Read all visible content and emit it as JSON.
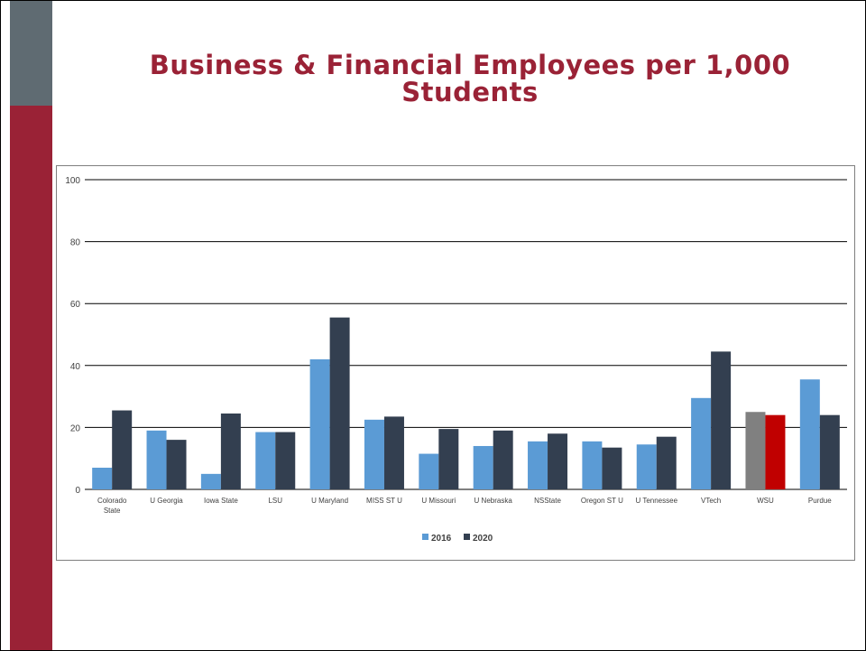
{
  "slide": {
    "title_line1": "Business & Financial Employees per 1,000",
    "title_line2": "Students"
  },
  "colors": {
    "sidebar_top": "#5f6b72",
    "sidebar_bottom": "#9a2236",
    "title": "#9a2236",
    "series_2016": "#5b9bd5",
    "series_2020": "#333f50",
    "wsu_2016": "#808080",
    "wsu_2020": "#c00000"
  },
  "chart_data": {
    "type": "bar",
    "title": "",
    "xlabel": "",
    "ylabel": "",
    "ylim": [
      0,
      100
    ],
    "yticks": [
      0,
      20,
      40,
      60,
      80,
      100
    ],
    "grid": true,
    "legend_position": "bottom",
    "categories": [
      [
        "Colorado",
        "State"
      ],
      [
        "U Georgia"
      ],
      [
        "Iowa State"
      ],
      [
        "LSU"
      ],
      [
        "U Maryland"
      ],
      [
        "MISS ST U"
      ],
      [
        "U Missouri"
      ],
      [
        "U Nebraska"
      ],
      [
        "NSState"
      ],
      [
        "Oregon ST U"
      ],
      [
        "U Tennessee"
      ],
      [
        "VTech"
      ],
      [
        "WSU"
      ],
      [
        "Purdue"
      ]
    ],
    "series": [
      {
        "name": "2016",
        "values": [
          7,
          19,
          5,
          18.5,
          42,
          22.5,
          11.5,
          14,
          15.5,
          15.5,
          14.5,
          29.5,
          25,
          35.5
        ]
      },
      {
        "name": "2020",
        "values": [
          25.5,
          16,
          24.5,
          18.5,
          55.5,
          23.5,
          19.5,
          19,
          18,
          13.5,
          17,
          44.5,
          24,
          24
        ]
      }
    ],
    "highlight": {
      "category_index": 12,
      "colors": [
        "#808080",
        "#c00000"
      ]
    }
  }
}
